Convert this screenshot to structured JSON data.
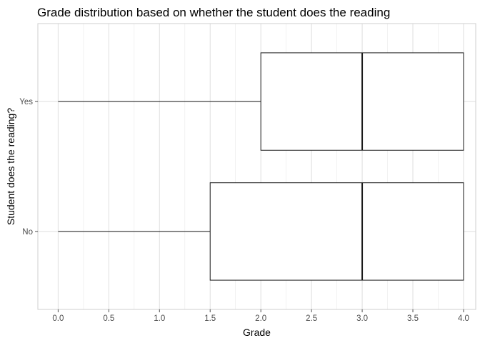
{
  "chart_data": {
    "type": "boxplot",
    "orientation": "horizontal",
    "title": "Grade distribution based on whether the student does the reading",
    "xlabel": "Grade",
    "ylabel": "Student does the reading?",
    "xlim": [
      -0.2,
      4.12
    ],
    "xticks": [
      0.0,
      0.5,
      1.0,
      1.5,
      2.0,
      2.5,
      3.0,
      3.5,
      4.0
    ],
    "xtick_labels": [
      "0.0",
      "0.5",
      "1.0",
      "1.5",
      "2.0",
      "2.5",
      "3.0",
      "3.5",
      "4.0"
    ],
    "categories": [
      "No",
      "Yes"
    ],
    "boxes": [
      {
        "category": "No",
        "min": 0.0,
        "q1": 1.5,
        "median": 3.0,
        "q3": 4.0,
        "max": 4.0
      },
      {
        "category": "Yes",
        "min": 0.0,
        "q1": 2.0,
        "median": 3.0,
        "q3": 4.0,
        "max": 4.0
      }
    ],
    "grid": true,
    "legend": "none",
    "colors": {
      "box_fill": "#ffffff",
      "box_line": "#1a1a1a",
      "grid": "#dedede",
      "panel_border": "#cfcfcf"
    }
  }
}
